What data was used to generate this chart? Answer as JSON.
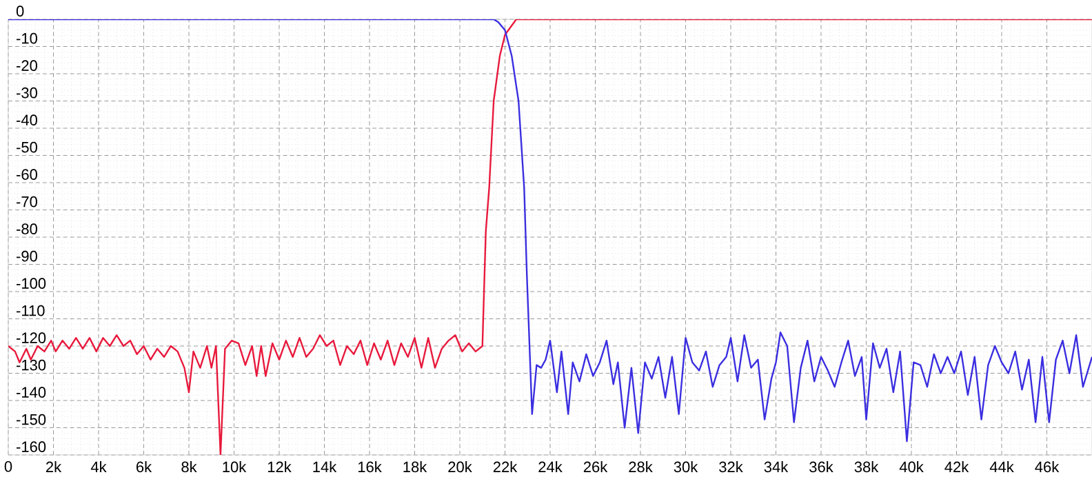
{
  "chart_data": {
    "type": "line",
    "xlim": [
      0,
      48000
    ],
    "ylim": [
      -160,
      0
    ],
    "xticks": [
      {
        "value": 0,
        "label": "0"
      },
      {
        "value": 2000,
        "label": "2k"
      },
      {
        "value": 4000,
        "label": "4k"
      },
      {
        "value": 6000,
        "label": "6k"
      },
      {
        "value": 8000,
        "label": "8k"
      },
      {
        "value": 10000,
        "label": "10k"
      },
      {
        "value": 12000,
        "label": "12k"
      },
      {
        "value": 14000,
        "label": "14k"
      },
      {
        "value": 16000,
        "label": "16k"
      },
      {
        "value": 18000,
        "label": "18k"
      },
      {
        "value": 20000,
        "label": "20k"
      },
      {
        "value": 22000,
        "label": "22k"
      },
      {
        "value": 24000,
        "label": "24k"
      },
      {
        "value": 26000,
        "label": "26k"
      },
      {
        "value": 28000,
        "label": "28k"
      },
      {
        "value": 30000,
        "label": "30k"
      },
      {
        "value": 32000,
        "label": "32k"
      },
      {
        "value": 34000,
        "label": "34k"
      },
      {
        "value": 36000,
        "label": "36k"
      },
      {
        "value": 38000,
        "label": "38k"
      },
      {
        "value": 40000,
        "label": "40k"
      },
      {
        "value": 42000,
        "label": "42k"
      },
      {
        "value": 44000,
        "label": "44k"
      },
      {
        "value": 46000,
        "label": "46k"
      }
    ],
    "yticks": [
      0,
      -10,
      -20,
      -30,
      -40,
      -50,
      -60,
      -70,
      -80,
      -90,
      -100,
      -110,
      -120,
      -130,
      -140,
      -150,
      -160
    ],
    "grid": true,
    "marker": "none",
    "line_style": "solid",
    "series": [
      {
        "color": "#e8193c",
        "x": [
          0,
          300,
          500,
          800,
          1000,
          1300,
          1600,
          1900,
          2100,
          2400,
          2700,
          3000,
          3300,
          3600,
          3900,
          4200,
          4500,
          4800,
          5100,
          5400,
          5700,
          6000,
          6300,
          6600,
          6900,
          7200,
          7500,
          7800,
          8000,
          8200,
          8500,
          8800,
          9000,
          9200,
          9400,
          9600,
          9900,
          10200,
          10500,
          10800,
          11000,
          11200,
          11400,
          11700,
          12000,
          12300,
          12600,
          12900,
          13200,
          13500,
          13800,
          14100,
          14400,
          14700,
          15000,
          15300,
          15600,
          15900,
          16200,
          16500,
          16800,
          17100,
          17400,
          17700,
          18000,
          18300,
          18600,
          18900,
          19200,
          19500,
          19800,
          20100,
          20400,
          20700,
          21000,
          21150,
          21300,
          21500,
          21770,
          22000,
          22500,
          48000
        ],
        "values": [
          -120,
          -122,
          -126,
          -121,
          -125,
          -120,
          -122,
          -118,
          -122,
          -118,
          -121,
          -117,
          -121,
          -117,
          -122,
          -117,
          -120,
          -116,
          -120,
          -118,
          -123,
          -120,
          -125,
          -121,
          -124,
          -120,
          -122,
          -128,
          -137,
          -122,
          -128,
          -120,
          -128,
          -120,
          -160,
          -121,
          -118,
          -119,
          -127,
          -120,
          -131,
          -120,
          -131,
          -119,
          -125,
          -118,
          -124,
          -117,
          -124,
          -121,
          -116,
          -120,
          -118,
          -127,
          -120,
          -123,
          -118,
          -127,
          -119,
          -125,
          -118,
          -127,
          -119,
          -124,
          -117,
          -128,
          -117,
          -128,
          -121,
          -118,
          -116,
          -122,
          -119,
          -122,
          -120,
          -78,
          -62,
          -30,
          -13.5,
          -5.7,
          0,
          0
        ]
      },
      {
        "color": "#3a2ee0",
        "x": [
          0,
          21500,
          21700,
          22000,
          22300,
          22600,
          22850,
          22970,
          23100,
          23200,
          23400,
          23600,
          23800,
          24000,
          24300,
          24500,
          24800,
          25000,
          25300,
          25600,
          25900,
          26200,
          26500,
          26800,
          27000,
          27300,
          27600,
          27900,
          28200,
          28500,
          28800,
          29100,
          29400,
          29700,
          30000,
          30300,
          30600,
          30900,
          31200,
          31500,
          31800,
          32000,
          32300,
          32600,
          32900,
          33200,
          33500,
          33800,
          34000,
          34200,
          34500,
          34800,
          35100,
          35400,
          35700,
          36000,
          36300,
          36600,
          36900,
          37200,
          37500,
          37800,
          38000,
          38300,
          38600,
          38900,
          39200,
          39500,
          39800,
          40100,
          40400,
          40700,
          41000,
          41300,
          41600,
          41900,
          42200,
          42500,
          42800,
          43100,
          43400,
          43700,
          44000,
          44300,
          44600,
          44900,
          45200,
          45500,
          45800,
          46100,
          46400,
          46700,
          47000,
          47300,
          47600,
          48000
        ],
        "values": [
          0,
          0,
          -1,
          -4,
          -13.5,
          -30,
          -62,
          -94,
          -123,
          -145,
          -127,
          -128,
          -125,
          -118,
          -137,
          -122,
          -145,
          -126,
          -133,
          -123,
          -131,
          -126,
          -118,
          -134,
          -126,
          -150,
          -128,
          -152,
          -126,
          -132,
          -124,
          -139,
          -124,
          -145,
          -117,
          -126,
          -129,
          -122,
          -135,
          -127,
          -124,
          -117,
          -133,
          -116,
          -128,
          -125,
          -147,
          -132,
          -126,
          -115,
          -120,
          -148,
          -128,
          -118,
          -133,
          -124,
          -129,
          -135,
          -126,
          -118,
          -131,
          -124,
          -147,
          -119,
          -128,
          -121,
          -137,
          -122,
          -155,
          -126,
          -127,
          -135,
          -123,
          -130,
          -124,
          -130,
          -122,
          -138,
          -124,
          -147,
          -127,
          -120,
          -126,
          -130,
          -122,
          -136,
          -125,
          -148,
          -124,
          -148,
          -125,
          -118,
          -130,
          -116,
          -135,
          -124
        ]
      }
    ]
  }
}
